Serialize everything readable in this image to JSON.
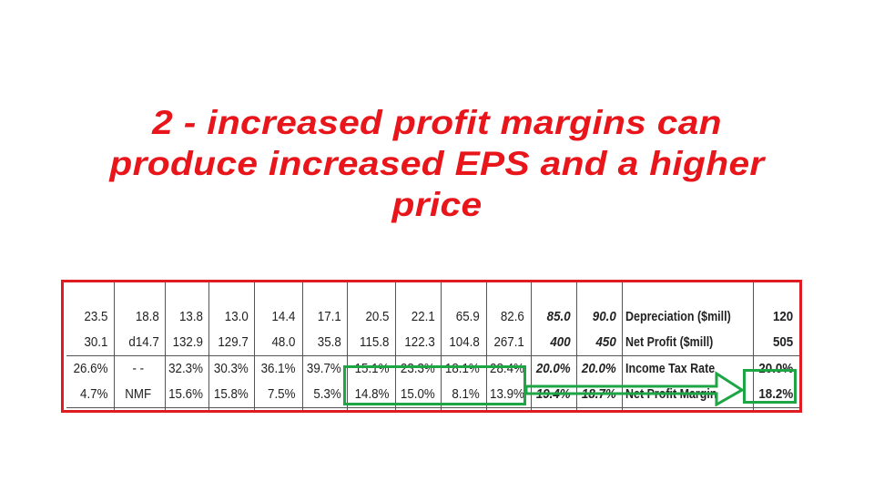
{
  "title": {
    "line1": "2 - increased profit margins can",
    "line2": "produce increased EPS and a higher",
    "line3": "price"
  },
  "table": {
    "rows": [
      {
        "cells": [
          "23.5",
          "18.8",
          "13.8",
          "13.0",
          "14.4",
          "17.1",
          "20.5",
          "22.1",
          "65.9",
          "82.6",
          "85.0",
          "90.0"
        ],
        "label": "Depreciation ($mill)",
        "last": "120"
      },
      {
        "cells": [
          "30.1",
          "d14.7",
          "132.9",
          "129.7",
          "48.0",
          "35.8",
          "115.8",
          "122.3",
          "104.8",
          "267.1",
          "400",
          "450"
        ],
        "label": "Net Profit ($mill)",
        "last": "505"
      },
      {
        "cells": [
          "26.6%",
          "- -",
          "32.3%",
          "30.3%",
          "36.1%",
          "39.7%",
          "15.1%",
          "23.3%",
          "18.1%",
          "28.4%",
          "20.0%",
          "20.0%"
        ],
        "label": "Income Tax Rate",
        "last": "20.0%"
      },
      {
        "cells": [
          "4.7%",
          "NMF",
          "15.6%",
          "15.8%",
          "7.5%",
          "5.3%",
          "14.8%",
          "15.0%",
          "8.1%",
          "13.9%",
          "19.4%",
          "18.7%"
        ],
        "label": "Net Profit Margin",
        "last": "18.2%"
      }
    ]
  },
  "colors": {
    "title": "#e8151b",
    "frame_border": "#e01b22",
    "highlight": "#1ea545"
  }
}
